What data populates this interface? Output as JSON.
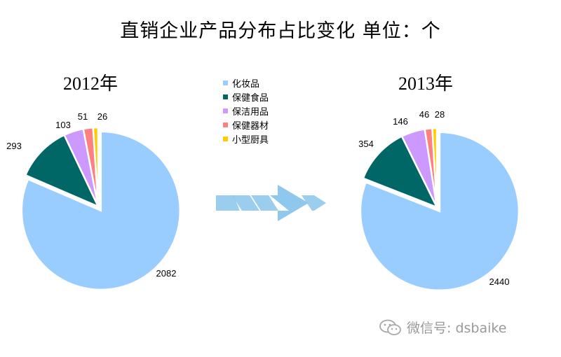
{
  "title": "直销企业产品分布占比变化 单位：个",
  "chart_data": [
    {
      "type": "pie",
      "title": "2012年",
      "categories": [
        "化妆品",
        "保健食品",
        "保洁用品",
        "保健器材",
        "小型厨具"
      ],
      "values": [
        2082,
        293,
        103,
        51,
        26
      ]
    },
    {
      "type": "pie",
      "title": "2013年",
      "categories": [
        "化妆品",
        "保健食品",
        "保洁用品",
        "保健器材",
        "小型厨具"
      ],
      "values": [
        2440,
        354,
        146,
        46,
        28
      ]
    }
  ],
  "legend": {
    "placement": "center",
    "items": [
      {
        "label": "化妆品",
        "color": "#99CCFF"
      },
      {
        "label": "保健食品",
        "color": "#006666"
      },
      {
        "label": "保洁用品",
        "color": "#CC99FF"
      },
      {
        "label": "保健器材",
        "color": "#FF8080"
      },
      {
        "label": "小型厨具",
        "color": "#FFCC00"
      }
    ]
  },
  "slice_colors": [
    "#99CCFF",
    "#006666",
    "#CC99FF",
    "#FF8080",
    "#FFCC00"
  ],
  "arrow_color": "#8FC8EC",
  "arrow_icon": "arrow-right-icon",
  "watermark": {
    "icon": "wechat-icon",
    "text": "微信号: dsbaike"
  }
}
